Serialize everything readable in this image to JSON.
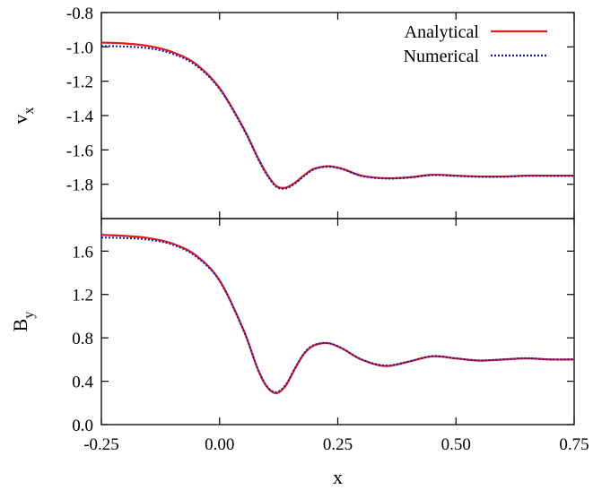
{
  "colors": {
    "analytical": "#e31a1c",
    "numerical": "#1a1aa6",
    "axis": "#000000"
  },
  "chart_data": [
    {
      "id": "vx",
      "type": "line",
      "ylabel": "v",
      "ylabel_sub": "x",
      "xlim": [
        -0.25,
        0.75
      ],
      "ylim": [
        -2.0,
        -0.8
      ],
      "yticks": [
        -0.8,
        -1.0,
        -1.2,
        -1.4,
        -1.6,
        -1.8
      ],
      "ytick_labels": [
        "-0.8",
        "-1.0",
        "-1.2",
        "-1.4",
        "-1.6",
        "-1.8"
      ],
      "legend": {
        "position": "top-right",
        "entries": [
          "Analytical",
          "Numerical"
        ]
      },
      "series": [
        {
          "name": "Analytical",
          "style": "solid",
          "x": [
            -0.25,
            -0.2,
            -0.15,
            -0.1,
            -0.05,
            0.0,
            0.05,
            0.08,
            0.1,
            0.12,
            0.14,
            0.16,
            0.18,
            0.2,
            0.23,
            0.26,
            0.3,
            0.35,
            0.4,
            0.45,
            0.5,
            0.55,
            0.6,
            0.65,
            0.7,
            0.75
          ],
          "y": [
            -0.975,
            -0.98,
            -0.995,
            -1.03,
            -1.1,
            -1.24,
            -1.47,
            -1.64,
            -1.74,
            -1.81,
            -1.82,
            -1.79,
            -1.745,
            -1.71,
            -1.695,
            -1.71,
            -1.75,
            -1.765,
            -1.76,
            -1.745,
            -1.75,
            -1.755,
            -1.755,
            -1.75,
            -1.75,
            -1.75
          ]
        },
        {
          "name": "Numerical",
          "style": "dotted",
          "x": [
            -0.25,
            -0.2,
            -0.15,
            -0.1,
            -0.05,
            0.0,
            0.05,
            0.08,
            0.1,
            0.12,
            0.14,
            0.16,
            0.18,
            0.2,
            0.23,
            0.26,
            0.3,
            0.35,
            0.4,
            0.45,
            0.5,
            0.55,
            0.6,
            0.65,
            0.7,
            0.75
          ],
          "y": [
            -0.995,
            -0.998,
            -1.008,
            -1.04,
            -1.108,
            -1.245,
            -1.475,
            -1.645,
            -1.745,
            -1.815,
            -1.825,
            -1.795,
            -1.75,
            -1.713,
            -1.698,
            -1.713,
            -1.752,
            -1.767,
            -1.762,
            -1.747,
            -1.752,
            -1.757,
            -1.757,
            -1.752,
            -1.752,
            -1.752
          ]
        }
      ]
    },
    {
      "id": "by",
      "type": "line",
      "ylabel": "B",
      "ylabel_sub": "y",
      "xlabel": "x",
      "xlim": [
        -0.25,
        0.75
      ],
      "ylim": [
        0.0,
        1.9
      ],
      "yticks": [
        0.0,
        0.4,
        0.8,
        1.2,
        1.6
      ],
      "ytick_labels": [
        "0.0",
        "0.4",
        "0.8",
        "1.2",
        "1.6"
      ],
      "xticks": [
        -0.25,
        0.0,
        0.25,
        0.5,
        0.75
      ],
      "xtick_labels": [
        "-0.25",
        "0.00",
        "0.25",
        "0.50",
        "0.75"
      ],
      "series": [
        {
          "name": "Analytical",
          "style": "solid",
          "x": [
            -0.25,
            -0.2,
            -0.15,
            -0.1,
            -0.05,
            0.0,
            0.05,
            0.08,
            0.1,
            0.12,
            0.14,
            0.16,
            0.18,
            0.2,
            0.23,
            0.26,
            0.3,
            0.35,
            0.4,
            0.45,
            0.5,
            0.55,
            0.6,
            0.65,
            0.7,
            0.75
          ],
          "y": [
            1.75,
            1.74,
            1.72,
            1.67,
            1.56,
            1.33,
            0.88,
            0.52,
            0.35,
            0.29,
            0.36,
            0.52,
            0.66,
            0.73,
            0.75,
            0.7,
            0.6,
            0.54,
            0.58,
            0.63,
            0.61,
            0.59,
            0.6,
            0.61,
            0.6,
            0.6
          ]
        },
        {
          "name": "Numerical",
          "style": "dotted",
          "x": [
            -0.25,
            -0.2,
            -0.15,
            -0.1,
            -0.05,
            0.0,
            0.05,
            0.08,
            0.1,
            0.12,
            0.14,
            0.16,
            0.18,
            0.2,
            0.23,
            0.26,
            0.3,
            0.35,
            0.4,
            0.45,
            0.5,
            0.55,
            0.6,
            0.65,
            0.7,
            0.75
          ],
          "y": [
            1.725,
            1.72,
            1.705,
            1.66,
            1.55,
            1.325,
            0.875,
            0.525,
            0.355,
            0.3,
            0.37,
            0.525,
            0.665,
            0.735,
            0.752,
            0.702,
            0.602,
            0.545,
            0.582,
            0.632,
            0.612,
            0.592,
            0.602,
            0.612,
            0.602,
            0.602
          ]
        }
      ]
    }
  ]
}
